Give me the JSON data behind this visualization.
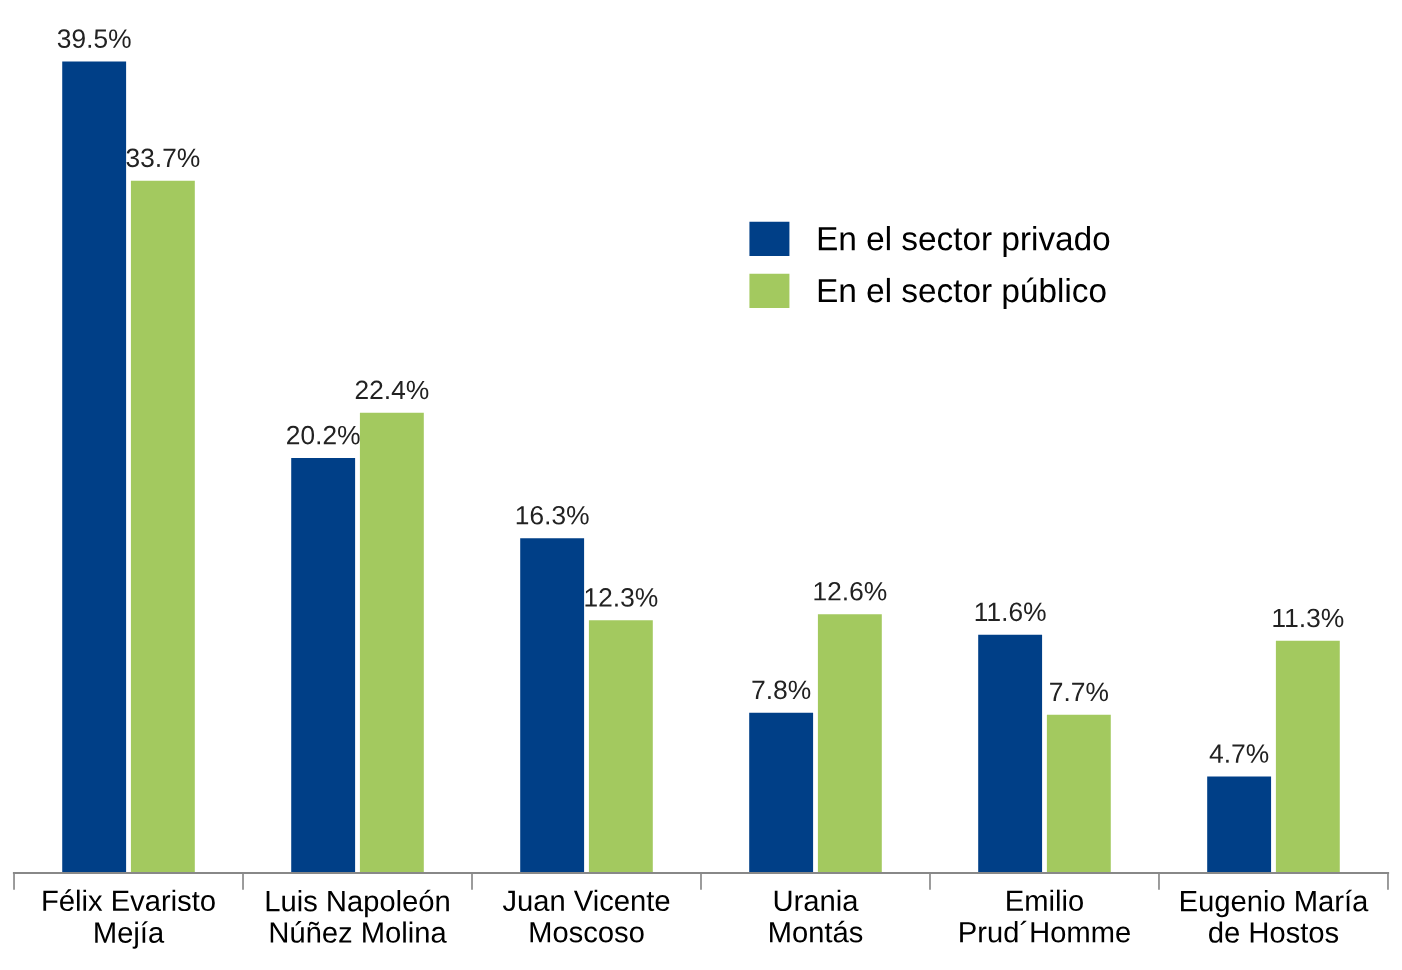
{
  "chart_data": {
    "type": "bar",
    "categories": [
      "Félix Evaristo\nMejía",
      "Luis Napoleón\nNúñez Molina",
      "Juan Vicente\nMoscoso",
      "Urania\nMontás",
      "Emilio\nPrud´Homme",
      "Eugenio María\nde Hostos"
    ],
    "series": [
      {
        "name": "En el sector privado",
        "color": "#003f87",
        "values": [
          39.5,
          20.2,
          16.3,
          7.8,
          11.6,
          4.7
        ],
        "value_labels": [
          "39.5%",
          "20.2%",
          "16.3%",
          "7.8%",
          "11.6%",
          "4.7%"
        ]
      },
      {
        "name": "En el sector público",
        "color": "#a3c95f",
        "values": [
          33.7,
          22.4,
          12.3,
          12.6,
          7.7,
          11.3
        ],
        "value_labels": [
          "33.7%",
          "22.4%",
          "12.3%",
          "12.6%",
          "7.7%",
          "11.3%"
        ]
      }
    ],
    "legend": "right",
    "grid": false,
    "tick_labels": "x"
  }
}
